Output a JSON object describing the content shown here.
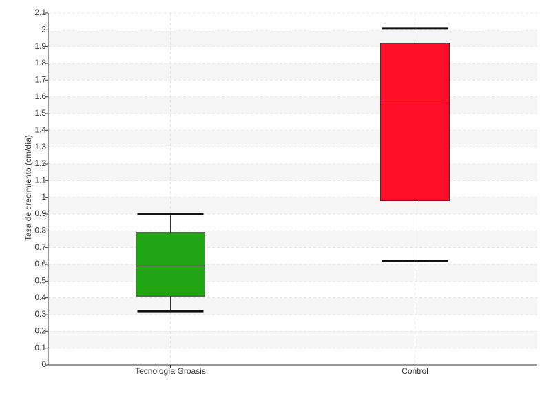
{
  "chart_data": {
    "type": "box",
    "y_label": "Tasa de crecimiento (cm/día)",
    "categories": [
      "Tecnología Groasis",
      "Control"
    ],
    "colors": [
      "#22a512",
      "#ff0d29"
    ],
    "whisker_low": [
      0.32,
      0.62
    ],
    "q1": [
      0.41,
      0.98
    ],
    "median": [
      0.59,
      1.58
    ],
    "q3": [
      0.79,
      1.92
    ],
    "whisker_high": [
      0.9,
      2.01
    ],
    "ylim": [
      0,
      2.1
    ],
    "yticks": [
      0,
      0.1,
      0.2,
      0.3,
      0.4,
      0.5,
      0.6,
      0.7,
      0.8,
      0.9,
      1,
      1.1,
      1.2,
      1.3,
      1.4,
      1.5,
      1.6,
      1.7,
      1.8,
      1.9,
      2,
      2.1
    ],
    "grid": true
  }
}
